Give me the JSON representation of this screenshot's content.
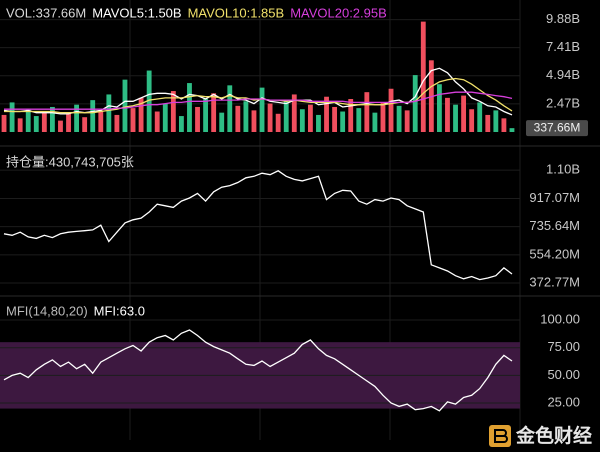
{
  "chart_data": [
    {
      "type": "bar",
      "header": [
        {
          "text": "VOL:337.66M",
          "color": "#d8d8d8"
        },
        {
          "text": "MAVOL5:1.50B",
          "color": "#ffffff"
        },
        {
          "text": "MAVOL10:1.85B",
          "color": "#f0e06a"
        },
        {
          "text": "MAVOL20:2.95B",
          "color": "#d63fdc"
        }
      ],
      "ylim": [
        0,
        11.6
      ],
      "yticks": [
        {
          "value": 9.88,
          "label": "9.88B"
        },
        {
          "value": 7.41,
          "label": "7.41B"
        },
        {
          "value": 4.94,
          "label": "4.94B"
        },
        {
          "value": 2.47,
          "label": "2.47B"
        }
      ],
      "current": {
        "value": 0.33766,
        "label": "337.66M"
      },
      "series": [
        {
          "type": "bar",
          "values": [
            1.5,
            2.6,
            1.2,
            2.0,
            1.4,
            1.8,
            2.2,
            1.0,
            1.6,
            2.4,
            1.3,
            2.8,
            1.9,
            3.3,
            1.5,
            4.6,
            2.1,
            3.0,
            5.4,
            1.8,
            2.5,
            3.6,
            1.4,
            4.3,
            2.2,
            2.9,
            3.4,
            1.7,
            4.1,
            2.3,
            2.7,
            1.9,
            3.9,
            2.5,
            1.6,
            2.8,
            3.3,
            2.0,
            2.4,
            1.5,
            3.1,
            2.2,
            1.8,
            2.9,
            2.1,
            3.5,
            1.7,
            2.6,
            3.8,
            2.3,
            1.9,
            5.0,
            9.7,
            6.3,
            4.2,
            3.0,
            2.4,
            3.2,
            2.0,
            2.6,
            1.5,
            1.9,
            1.2,
            0.33766
          ],
          "colors": [
            "#f04f5e",
            "#2ebd85",
            "#f04f5e",
            "#2ebd85",
            "#2ebd85",
            "#f04f5e",
            "#2ebd85",
            "#f04f5e",
            "#f04f5e",
            "#2ebd85",
            "#f04f5e",
            "#2ebd85",
            "#f04f5e",
            "#2ebd85",
            "#f04f5e",
            "#2ebd85",
            "#f04f5e",
            "#f04f5e",
            "#2ebd85",
            "#f04f5e",
            "#2ebd85",
            "#f04f5e",
            "#2ebd85",
            "#2ebd85",
            "#f04f5e",
            "#2ebd85",
            "#f04f5e",
            "#2ebd85",
            "#2ebd85",
            "#f04f5e",
            "#2ebd85",
            "#f04f5e",
            "#2ebd85",
            "#f04f5e",
            "#f04f5e",
            "#2ebd85",
            "#f04f5e",
            "#2ebd85",
            "#f04f5e",
            "#2ebd85",
            "#f04f5e",
            "#f04f5e",
            "#2ebd85",
            "#f04f5e",
            "#2ebd85",
            "#f04f5e",
            "#2ebd85",
            "#f04f5e",
            "#f04f5e",
            "#2ebd85",
            "#f04f5e",
            "#2ebd85",
            "#f04f5e",
            "#f04f5e",
            "#2ebd85",
            "#f04f5e",
            "#2ebd85",
            "#f04f5e",
            "#f04f5e",
            "#2ebd85",
            "#f04f5e",
            "#2ebd85",
            "#f04f5e",
            "#2ebd85"
          ]
        },
        {
          "type": "line",
          "color": "#ffffff",
          "values": [
            1.9,
            1.8,
            1.8,
            1.9,
            1.7,
            1.7,
            1.7,
            1.6,
            1.6,
            1.8,
            1.7,
            1.8,
            1.9,
            2.3,
            2.2,
            2.7,
            2.7,
            3.0,
            3.3,
            3.4,
            3.4,
            3.3,
            2.9,
            3.3,
            3.2,
            2.9,
            3.3,
            2.9,
            3.3,
            2.9,
            2.8,
            2.5,
            3.0,
            2.7,
            2.6,
            2.5,
            2.8,
            2.8,
            2.8,
            2.4,
            2.5,
            2.6,
            2.2,
            2.3,
            2.4,
            2.5,
            2.4,
            2.4,
            2.7,
            2.8,
            2.5,
            3.1,
            4.5,
            5.4,
            5.6,
            5.2,
            4.4,
            3.8,
            3.0,
            2.7,
            2.3,
            2.2,
            1.8,
            1.5
          ]
        },
        {
          "type": "line",
          "color": "#f0e06a",
          "values": [
            1.8,
            1.8,
            1.8,
            1.8,
            1.8,
            1.8,
            1.8,
            1.7,
            1.7,
            1.7,
            1.7,
            1.7,
            1.8,
            1.9,
            2.0,
            2.2,
            2.3,
            2.5,
            2.8,
            2.9,
            3.0,
            3.0,
            3.0,
            3.1,
            3.2,
            3.1,
            3.1,
            3.0,
            3.2,
            3.0,
            3.0,
            2.8,
            2.9,
            2.8,
            2.8,
            2.7,
            2.8,
            2.7,
            2.6,
            2.6,
            2.6,
            2.6,
            2.5,
            2.4,
            2.4,
            2.4,
            2.4,
            2.4,
            2.5,
            2.6,
            2.6,
            2.7,
            3.4,
            4.0,
            4.4,
            4.6,
            4.7,
            4.6,
            4.2,
            3.7,
            3.2,
            2.8,
            2.3,
            1.85
          ]
        },
        {
          "type": "line",
          "color": "#d63fdc",
          "values": [
            2.0,
            2.0,
            2.0,
            2.0,
            2.0,
            2.0,
            2.0,
            2.0,
            2.0,
            2.0,
            2.0,
            2.0,
            2.0,
            2.0,
            2.1,
            2.1,
            2.2,
            2.3,
            2.4,
            2.4,
            2.5,
            2.6,
            2.6,
            2.7,
            2.7,
            2.7,
            2.8,
            2.8,
            2.8,
            2.8,
            2.9,
            2.9,
            2.9,
            2.8,
            2.8,
            2.8,
            2.8,
            2.8,
            2.7,
            2.7,
            2.7,
            2.7,
            2.7,
            2.6,
            2.6,
            2.6,
            2.6,
            2.6,
            2.6,
            2.6,
            2.6,
            2.7,
            2.9,
            3.1,
            3.3,
            3.4,
            3.5,
            3.5,
            3.5,
            3.4,
            3.3,
            3.2,
            3.1,
            2.95
          ]
        }
      ]
    },
    {
      "type": "line",
      "header": [
        {
          "text": "持仓量:430,743,705张",
          "color": "#d8d8d8"
        }
      ],
      "ylim": [
        328,
        1197
      ],
      "yticks": [
        {
          "value": 1100,
          "label": "1.10B"
        },
        {
          "value": 917.07,
          "label": "917.07M"
        },
        {
          "value": 735.64,
          "label": "735.64M"
        },
        {
          "value": 554.2,
          "label": "554.20M"
        },
        {
          "value": 372.77,
          "label": "372.77M"
        }
      ],
      "series": [
        {
          "type": "line",
          "color": "#ffffff",
          "values": [
            690,
            680,
            700,
            670,
            660,
            680,
            665,
            690,
            700,
            705,
            710,
            715,
            745,
            640,
            700,
            760,
            780,
            790,
            830,
            880,
            870,
            860,
            900,
            920,
            950,
            900,
            960,
            990,
            1000,
            1020,
            1050,
            1060,
            1080,
            1070,
            1095,
            1060,
            1040,
            1030,
            1045,
            1060,
            910,
            950,
            970,
            965,
            900,
            880,
            910,
            900,
            920,
            910,
            870,
            850,
            830,
            490,
            470,
            450,
            420,
            400,
            415,
            395,
            405,
            420,
            470,
            430.74
          ]
        }
      ]
    },
    {
      "type": "line",
      "header": [
        {
          "text": "MFI(14,80,20)",
          "color": "#bbbbbb"
        },
        {
          "text": "MFI:63.0",
          "color": "#ffffff"
        }
      ],
      "ylim": [
        -8.4,
        118.1
      ],
      "yticks": [
        {
          "value": 100,
          "label": "100.00"
        },
        {
          "value": 75,
          "label": "75.00"
        },
        {
          "value": 50,
          "label": "50.00"
        },
        {
          "value": 25,
          "label": "25.00"
        }
      ],
      "band": [
        20,
        80
      ],
      "band_color": "#3d1840",
      "series": [
        {
          "type": "line",
          "color": "#ffffff",
          "values": [
            46,
            50,
            52,
            48,
            55,
            60,
            64,
            58,
            62,
            56,
            60,
            52,
            62,
            66,
            70,
            74,
            77,
            72,
            80,
            84,
            86,
            82,
            88,
            91,
            86,
            80,
            76,
            73,
            70,
            65,
            60,
            59,
            63,
            58,
            62,
            66,
            70,
            78,
            82,
            74,
            68,
            65,
            60,
            55,
            50,
            45,
            40,
            32,
            25,
            22,
            24,
            19,
            20,
            22,
            18,
            26,
            24,
            30,
            32,
            38,
            48,
            60,
            68,
            63
          ]
        }
      ]
    }
  ],
  "watermark": "金色财经"
}
